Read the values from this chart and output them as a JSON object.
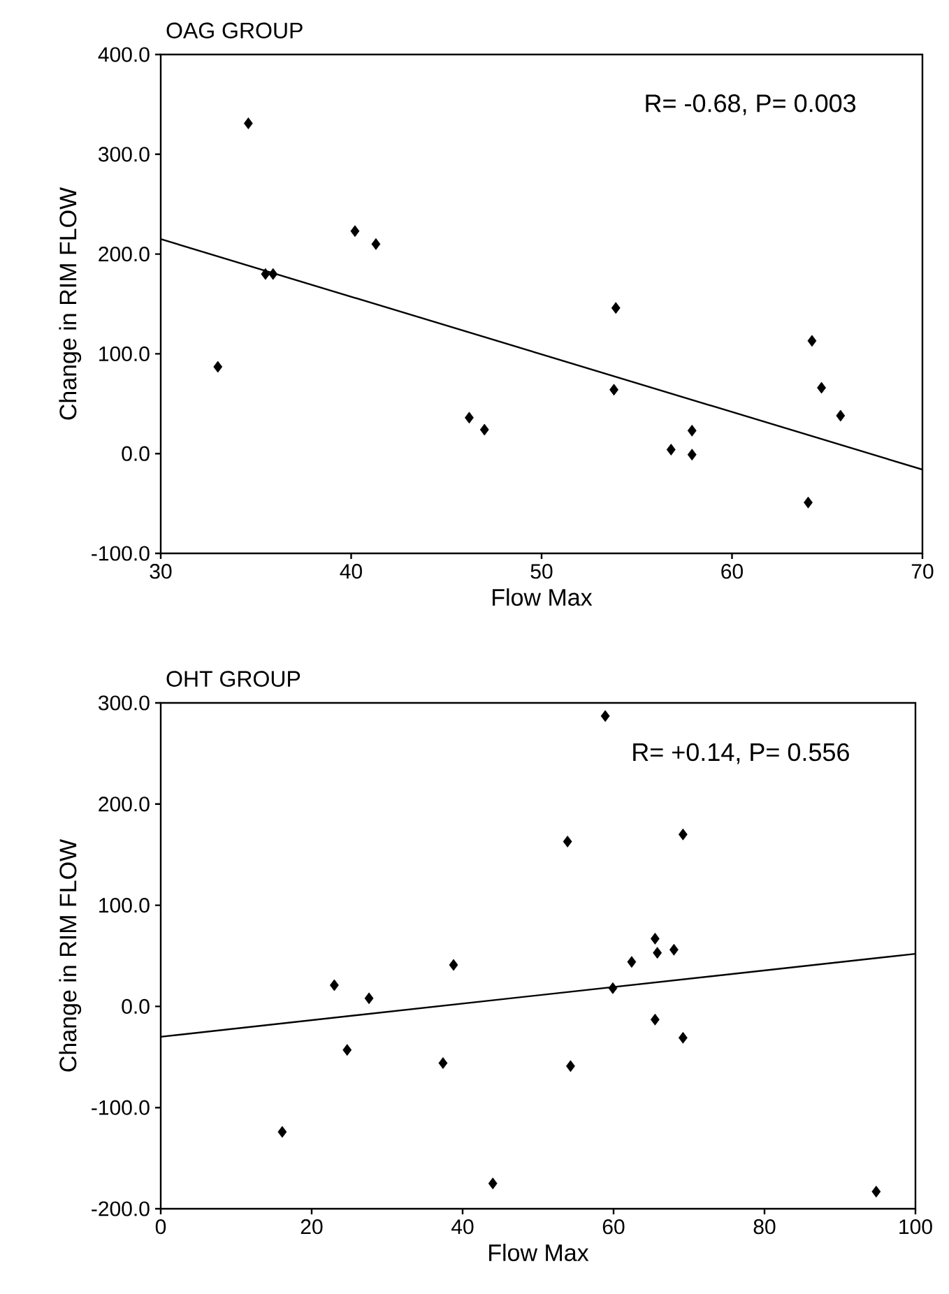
{
  "chart_data": [
    {
      "type": "scatter",
      "title": "OAG GROUP",
      "xlabel": "Flow Max",
      "ylabel": "Change in RIM FLOW",
      "annotations": [
        "R= -0.68, P= 0.003"
      ],
      "marker": "diamond",
      "xlim": [
        30,
        70
      ],
      "xticks": [
        30,
        40,
        50,
        60,
        70
      ],
      "ylim": [
        -100,
        400
      ],
      "yticks": [
        {
          "value": -100,
          "label": "-100.0"
        },
        {
          "value": 0,
          "label": "0.0"
        },
        {
          "value": 100,
          "label": "100.0"
        },
        {
          "value": 200,
          "label": "200.0"
        },
        {
          "value": 300,
          "label": "300.0"
        },
        {
          "value": 400,
          "label": "400.0"
        }
      ],
      "series": [
        {
          "color": "#000000",
          "x": [
            33.0,
            34.6,
            35.5,
            35.9,
            40.2,
            41.3,
            46.2,
            47.0,
            53.9,
            53.8,
            56.8,
            57.9,
            57.9,
            64.0,
            64.2,
            64.7,
            65.7
          ],
          "values": [
            87,
            331,
            180,
            180,
            223,
            210,
            36,
            24,
            146,
            64,
            4,
            23,
            -1,
            -49,
            113,
            66,
            38
          ]
        },
        {
          "type": "line",
          "marker": "none",
          "color": "#000000",
          "x": [
            30,
            70
          ],
          "values": [
            215,
            -16
          ]
        }
      ]
    },
    {
      "type": "scatter",
      "title": "OHT GROUP",
      "xlabel": "Flow Max",
      "ylabel": "Change in RIM FLOW",
      "annotations": [
        "R= +0.14, P= 0.556"
      ],
      "marker": "diamond",
      "xlim": [
        0,
        100
      ],
      "xticks": [
        0,
        20,
        40,
        60,
        80,
        100
      ],
      "ylim": [
        -200,
        300
      ],
      "yticks": [
        {
          "value": -200,
          "label": "-200.0"
        },
        {
          "value": -100,
          "label": "-100.0"
        },
        {
          "value": 0,
          "label": "0.0"
        },
        {
          "value": 100,
          "label": "100.0"
        },
        {
          "value": 200,
          "label": "200.0"
        },
        {
          "value": 300,
          "label": "300.0"
        }
      ],
      "series": [
        {
          "color": "#000000",
          "x": [
            16.1,
            23.0,
            24.7,
            27.6,
            37.4,
            38.8,
            44.0,
            53.9,
            54.3,
            58.9,
            59.9,
            62.4,
            65.5,
            65.8,
            65.5,
            68.0,
            69.2,
            69.2,
            94.8
          ],
          "values": [
            -124,
            21,
            -43,
            8,
            -56,
            41,
            -175,
            163,
            -59,
            287,
            18,
            44,
            67,
            53,
            -13,
            56,
            170,
            -31,
            -183
          ]
        },
        {
          "type": "line",
          "marker": "none",
          "color": "#000000",
          "x": [
            0,
            100
          ],
          "values": [
            -30,
            52
          ]
        }
      ]
    }
  ]
}
